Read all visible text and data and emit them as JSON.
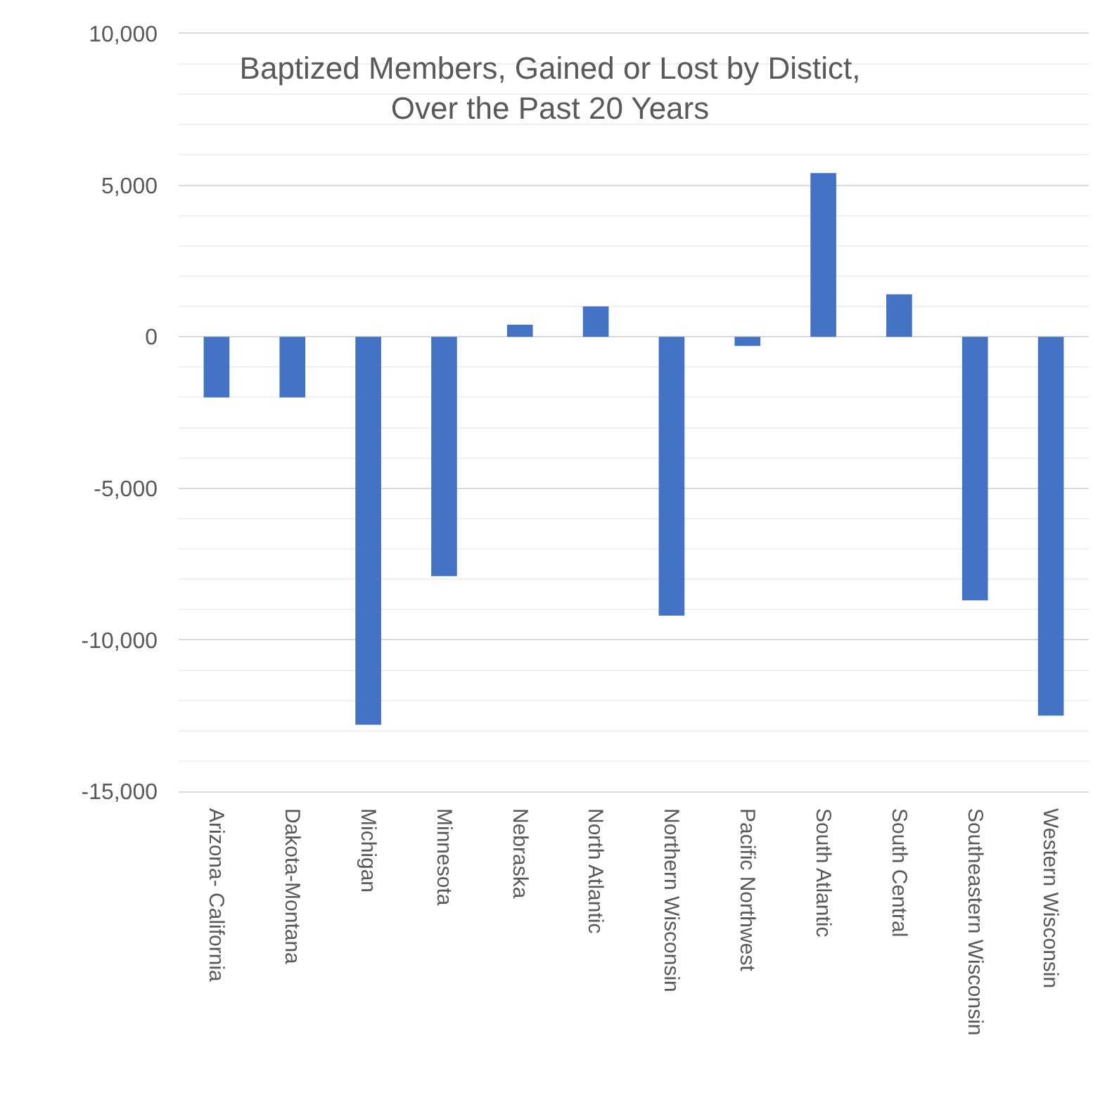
{
  "chart_data": {
    "type": "bar",
    "title": "Baptized Members, Gained or Lost by Distict,\nOver the Past 20 Years",
    "categories": [
      "Arizona- California",
      "Dakota-Montana",
      "Michigan",
      "Minnesota",
      "Nebraska",
      "North Atlantic",
      "Northern Wisconsin",
      "Pacific Northwest",
      "South Atlantic",
      "South Central",
      "Southeastern Wisconsin",
      "Western Wisconsin"
    ],
    "values": [
      -2000,
      -2000,
      -12800,
      -7900,
      400,
      1000,
      -9200,
      -300,
      5400,
      1400,
      -8700,
      -12500
    ],
    "color": "#4472c4",
    "ylim": [
      -15000,
      10000
    ],
    "yticks": [
      {
        "value": -15000,
        "label": "-15,000"
      },
      {
        "value": -14000,
        "label": null
      },
      {
        "value": -13000,
        "label": null
      },
      {
        "value": -12000,
        "label": null
      },
      {
        "value": -11000,
        "label": null
      },
      {
        "value": -10000,
        "label": "-10,000"
      },
      {
        "value": -9000,
        "label": null
      },
      {
        "value": -8000,
        "label": null
      },
      {
        "value": -7000,
        "label": null
      },
      {
        "value": -6000,
        "label": null
      },
      {
        "value": -5000,
        "label": "-5,000"
      },
      {
        "value": -4000,
        "label": null
      },
      {
        "value": -3000,
        "label": null
      },
      {
        "value": -2000,
        "label": null
      },
      {
        "value": -1000,
        "label": null
      },
      0,
      {
        "value": 1000,
        "label": null
      },
      {
        "value": 2000,
        "label": null
      },
      {
        "value": 3000,
        "label": null
      },
      {
        "value": 4000,
        "label": null
      },
      {
        "value": 5000,
        "label": "5,000"
      },
      {
        "value": 6000,
        "label": null
      },
      {
        "value": 7000,
        "label": null
      },
      {
        "value": 8000,
        "label": null
      },
      {
        "value": 9000,
        "label": null
      },
      {
        "value": 10000,
        "label": "10,000"
      }
    ],
    "grid": "y"
  }
}
